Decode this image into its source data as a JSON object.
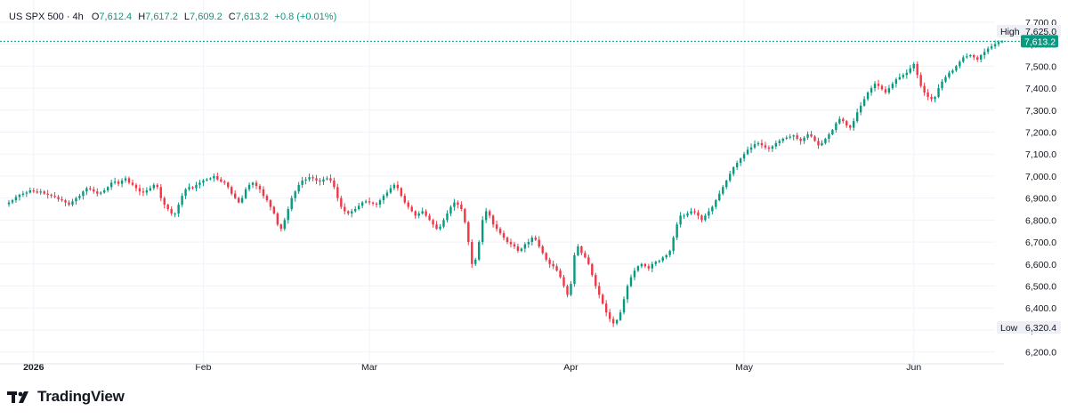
{
  "legend": {
    "symbol": "US SPX 500",
    "interval": "4h",
    "o_label": "O",
    "o_value": "7,612.4",
    "h_label": "H",
    "h_value": "7,617.2",
    "l_label": "L",
    "l_value": "7,609.2",
    "c_label": "C",
    "c_value": "7,613.2",
    "change": "+0.8 (+0.01%)"
  },
  "badges": {
    "high_label": "High",
    "high_value": "7,625.0",
    "last_value": "7,613.2",
    "low_label": "Low",
    "low_value": "6,320.4"
  },
  "colors": {
    "up": "#089981",
    "down": "#f23645",
    "last_price": "#089981",
    "grid": "#f0f3fa"
  },
  "brand": {
    "name": "TradingView"
  },
  "chart_data": {
    "type": "candlestick",
    "title": "",
    "ylim": [
      6150,
      7720
    ],
    "y_ticks": [
      6200,
      6300,
      6400,
      6500,
      6600,
      6700,
      6800,
      6900,
      7000,
      7100,
      7200,
      7300,
      7400,
      7500,
      7600,
      7700
    ],
    "y_tick_labels": [
      "6,200.0",
      "6,300.0",
      "6,400.0",
      "6,500.0",
      "6,600.0",
      "6,700.0",
      "6,800.0",
      "6,900.0",
      "7,000.0",
      "7,100.0",
      "7,200.0",
      "7,300.0",
      "7,400.0",
      "7,500.0",
      "7,600.0",
      "7,700.0"
    ],
    "x_labels": [
      "2026",
      "Feb",
      "Mar",
      "Apr",
      "May",
      "Jun"
    ],
    "x_label_index": [
      7,
      55,
      102,
      159,
      208,
      256
    ],
    "grid": true,
    "closes": [
      6880,
      6890,
      6905,
      6915,
      6920,
      6925,
      6935,
      6930,
      6925,
      6930,
      6920,
      6915,
      6910,
      6905,
      6895,
      6890,
      6880,
      6870,
      6885,
      6900,
      6910,
      6930,
      6945,
      6940,
      6930,
      6920,
      6925,
      6935,
      6950,
      6970,
      6975,
      6965,
      6980,
      6990,
      6970,
      6960,
      6945,
      6930,
      6925,
      6935,
      6945,
      6960,
      6950,
      6900,
      6870,
      6850,
      6830,
      6830,
      6870,
      6910,
      6940,
      6950,
      6945,
      6960,
      6970,
      6980,
      6985,
      6990,
      7000,
      6985,
      6975,
      6970,
      6950,
      6920,
      6900,
      6880,
      6900,
      6940,
      6960,
      6970,
      6955,
      6940,
      6910,
      6890,
      6860,
      6830,
      6780,
      6760,
      6800,
      6850,
      6900,
      6930,
      6960,
      6980,
      6985,
      6995,
      6990,
      6980,
      6975,
      6985,
      6990,
      6980,
      6950,
      6900,
      6860,
      6840,
      6830,
      6840,
      6850,
      6865,
      6880,
      6885,
      6880,
      6875,
      6870,
      6890,
      6910,
      6925,
      6945,
      6960,
      6945,
      6910,
      6880,
      6860,
      6840,
      6820,
      6830,
      6840,
      6820,
      6800,
      6780,
      6760,
      6770,
      6800,
      6830,
      6860,
      6880,
      6870,
      6850,
      6790,
      6700,
      6600,
      6620,
      6700,
      6800,
      6840,
      6820,
      6780,
      6760,
      6740,
      6720,
      6700,
      6690,
      6680,
      6660,
      6670,
      6690,
      6700,
      6720,
      6710,
      6680,
      6650,
      6620,
      6600,
      6590,
      6570,
      6540,
      6500,
      6460,
      6510,
      6640,
      6680,
      6650,
      6630,
      6600,
      6550,
      6500,
      6460,
      6420,
      6380,
      6350,
      6330,
      6345,
      6380,
      6440,
      6500,
      6540,
      6570,
      6590,
      6600,
      6590,
      6580,
      6600,
      6610,
      6615,
      6630,
      6640,
      6660,
      6720,
      6780,
      6820,
      6820,
      6830,
      6840,
      6835,
      6820,
      6800,
      6820,
      6840,
      6860,
      6890,
      6920,
      6950,
      6980,
      7010,
      7040,
      7060,
      7080,
      7100,
      7120,
      7130,
      7145,
      7150,
      7140,
      7130,
      7125,
      7135,
      7150,
      7160,
      7170,
      7175,
      7180,
      7185,
      7170,
      7160,
      7175,
      7190,
      7180,
      7160,
      7140,
      7150,
      7170,
      7190,
      7210,
      7240,
      7260,
      7250,
      7230,
      7220,
      7250,
      7290,
      7320,
      7350,
      7380,
      7400,
      7420,
      7410,
      7395,
      7380,
      7400,
      7420,
      7440,
      7450,
      7460,
      7470,
      7490,
      7510,
      7460,
      7410,
      7380,
      7360,
      7350,
      7360,
      7400,
      7430,
      7450,
      7470,
      7480,
      7500,
      7520,
      7540,
      7545,
      7550,
      7540,
      7530,
      7550,
      7565,
      7580,
      7590,
      7600,
      7610,
      7613.2
    ],
    "last": 7613.2,
    "high": 7625.0,
    "low": 6320.4
  }
}
